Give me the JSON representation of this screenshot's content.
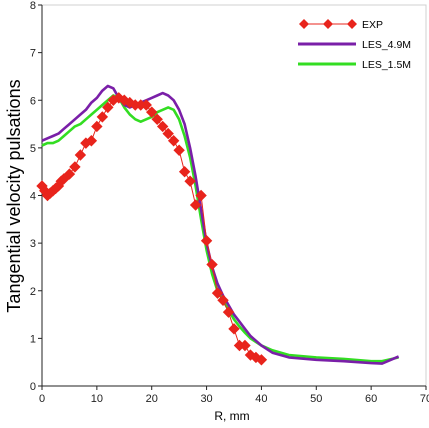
{
  "chart_data": {
    "type": "line",
    "title": "",
    "xlabel": "R, mm",
    "ylabel": "Tangential velocity pulsations",
    "xlim": [
      0,
      70
    ],
    "ylim": [
      0,
      8
    ],
    "xticks": [
      0,
      10,
      20,
      30,
      40,
      50,
      60,
      70
    ],
    "yticks": [
      0,
      1,
      2,
      3,
      4,
      5,
      6,
      7,
      8
    ],
    "grid": false,
    "legend": "top-right",
    "series": [
      {
        "name": "EXP",
        "color": "#e8241c",
        "marker": "diamond",
        "x": [
          0,
          0.5,
          1,
          1.5,
          2,
          2.5,
          3,
          3.5,
          4,
          5,
          6,
          7,
          8,
          9,
          10,
          11,
          12,
          13,
          14,
          15,
          16,
          17,
          18,
          19,
          20,
          21,
          22,
          23,
          24,
          25,
          26,
          27,
          28,
          29,
          30,
          31,
          32,
          33,
          34,
          35,
          36,
          37,
          38,
          39,
          40
        ],
        "y": [
          4.2,
          4.1,
          4.0,
          4.05,
          4.1,
          4.15,
          4.2,
          4.3,
          4.35,
          4.45,
          4.6,
          4.85,
          5.1,
          5.15,
          5.45,
          5.65,
          5.85,
          6.0,
          6.05,
          6.0,
          5.95,
          5.9,
          5.9,
          5.9,
          5.75,
          5.6,
          5.45,
          5.3,
          5.15,
          4.95,
          4.5,
          4.3,
          3.8,
          4.0,
          3.05,
          2.55,
          1.95,
          1.8,
          1.55,
          1.2,
          0.85,
          0.85,
          0.65,
          0.6,
          0.55
        ]
      },
      {
        "name": "LES_4.9M",
        "color": "#7a1fa8",
        "x": [
          0,
          1,
          2,
          3,
          4,
          5,
          6,
          7,
          8,
          9,
          10,
          11,
          12,
          13,
          14,
          15,
          16,
          17,
          18,
          19,
          20,
          21,
          22,
          23,
          24,
          25,
          26,
          27,
          28,
          29,
          30,
          31,
          32,
          33,
          34,
          35,
          36,
          37,
          38,
          40,
          42,
          45,
          50,
          55,
          60,
          62,
          65
        ],
        "y": [
          5.15,
          5.2,
          5.25,
          5.3,
          5.4,
          5.5,
          5.6,
          5.7,
          5.8,
          5.95,
          6.05,
          6.2,
          6.3,
          6.25,
          6.05,
          5.9,
          5.85,
          5.9,
          5.95,
          6.0,
          6.05,
          6.1,
          6.15,
          6.1,
          6.0,
          5.8,
          5.5,
          5.0,
          4.4,
          3.7,
          3.0,
          2.5,
          2.15,
          1.9,
          1.7,
          1.5,
          1.35,
          1.2,
          1.05,
          0.85,
          0.7,
          0.6,
          0.55,
          0.52,
          0.48,
          0.47,
          0.62
        ]
      },
      {
        "name": "LES_1.5M",
        "color": "#33dd22",
        "x": [
          0,
          1,
          2,
          3,
          4,
          5,
          6,
          7,
          8,
          9,
          10,
          11,
          12,
          13,
          14,
          15,
          16,
          17,
          18,
          19,
          20,
          21,
          22,
          23,
          24,
          25,
          26,
          27,
          28,
          29,
          30,
          31,
          32,
          33,
          34,
          35,
          36,
          37,
          38,
          40,
          42,
          45,
          50,
          55,
          60,
          62,
          65
        ],
        "y": [
          5.05,
          5.1,
          5.1,
          5.15,
          5.25,
          5.35,
          5.45,
          5.5,
          5.6,
          5.7,
          5.8,
          5.9,
          6.0,
          6.1,
          6.05,
          5.85,
          5.7,
          5.6,
          5.55,
          5.6,
          5.65,
          5.75,
          5.8,
          5.85,
          5.8,
          5.6,
          5.25,
          4.8,
          4.2,
          3.5,
          2.85,
          2.35,
          2.0,
          1.8,
          1.6,
          1.4,
          1.25,
          1.12,
          1.0,
          0.85,
          0.75,
          0.65,
          0.6,
          0.57,
          0.52,
          0.52,
          0.6
        ]
      }
    ]
  }
}
